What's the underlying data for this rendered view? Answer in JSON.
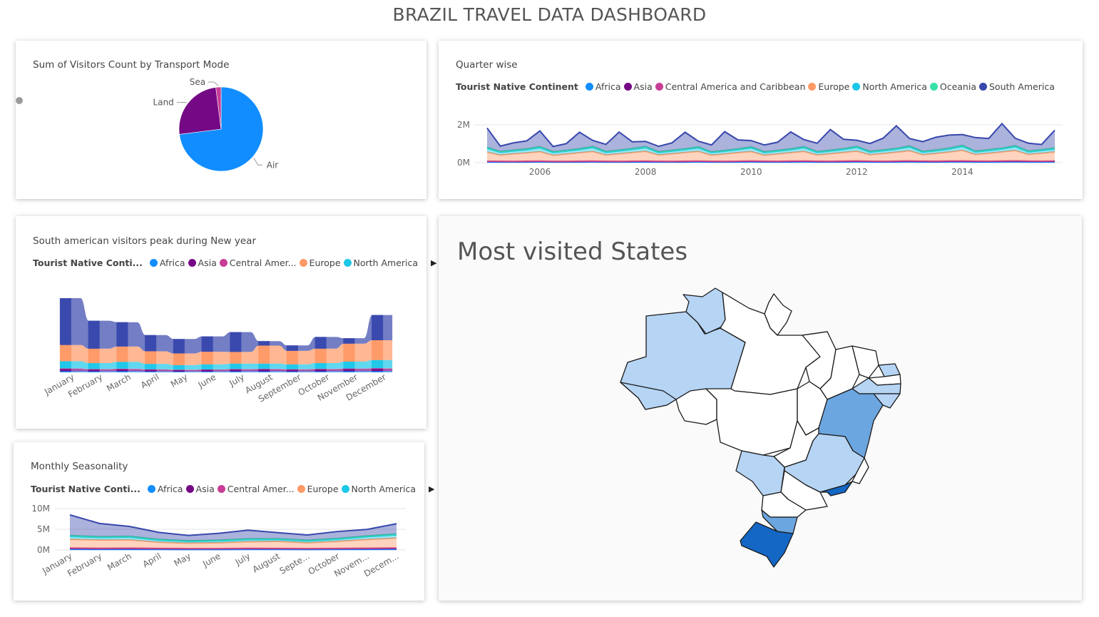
{
  "dashboard": {
    "title": "BRAZIL TRAVEL DATA DASHBOARD"
  },
  "colors": {
    "africa": "#118DFF",
    "asia": "#750985",
    "central_america": "#C83D95",
    "europe": "#FF9966",
    "north_america": "#1DC7E8",
    "oceania": "#37E0A8",
    "south_america": "#3747AC",
    "map_high": "#1467C4",
    "map_mid": "#6CA6E0",
    "map_low": "#B6D4F4"
  },
  "pie_card": {
    "title": "Sum of Visitors Count by Transport Mode",
    "chart_data": {
      "type": "pie",
      "title": "Sum of Visitors Count by Transport Mode",
      "categories": [
        "Air",
        "Land",
        "Sea"
      ],
      "values": [
        73,
        25,
        2
      ]
    }
  },
  "quarter_card": {
    "title": "Quarter wise",
    "legend_title": "Tourist Native Continent",
    "legend": [
      "Africa",
      "Asia",
      "Central America and Caribbean",
      "Europe",
      "North America",
      "Oceania",
      "South America"
    ],
    "chart_data": {
      "type": "area",
      "ytick_labels": [
        "0M",
        "2M"
      ],
      "xtick_labels": [
        "2006",
        "2008",
        "2010",
        "2012",
        "2014"
      ],
      "x_start": 2005.0,
      "x_step": 0.25,
      "ylim": [
        0,
        2000000
      ],
      "stack_order": [
        "Africa",
        "Asia",
        "Central America and Caribbean",
        "Europe",
        "North America",
        "Oceania",
        "South America"
      ],
      "series": [
        {
          "name": "Africa",
          "values": [
            30000,
            28000,
            26000,
            30000,
            32000,
            27000,
            26000,
            29000,
            31000,
            28000,
            26000,
            29000,
            30000,
            28000,
            26000,
            29000,
            31000,
            28000,
            27000,
            30000,
            32000,
            29000,
            27000,
            30000,
            31000,
            28000,
            27000,
            30000,
            32000,
            29000,
            27000,
            30000,
            33000,
            29000,
            28000,
            31000,
            32000,
            29000,
            28000,
            31000,
            33000,
            30000,
            28000,
            31000
          ]
        },
        {
          "name": "Asia",
          "values": [
            40000,
            36000,
            34000,
            38000,
            42000,
            36000,
            34000,
            38000,
            42000,
            37000,
            35000,
            39000,
            42000,
            37000,
            35000,
            39000,
            43000,
            38000,
            36000,
            40000,
            44000,
            39000,
            37000,
            41000,
            45000,
            40000,
            38000,
            42000,
            46000,
            41000,
            39000,
            43000,
            47000,
            42000,
            40000,
            44000,
            48000,
            43000,
            41000,
            45000,
            50000,
            44000,
            42000,
            46000
          ]
        },
        {
          "name": "Central America and Caribbean",
          "values": [
            12000,
            10000,
            9000,
            11000,
            12000,
            10000,
            9000,
            11000,
            12000,
            10000,
            9000,
            11000,
            12000,
            10000,
            9000,
            11000,
            13000,
            11000,
            10000,
            12000,
            13000,
            11000,
            10000,
            12000,
            13000,
            11000,
            10000,
            12000,
            14000,
            12000,
            11000,
            13000,
            14000,
            12000,
            11000,
            13000,
            15000,
            12000,
            11000,
            14000,
            15000,
            13000,
            12000,
            14000
          ]
        },
        {
          "name": "Europe",
          "values": [
            480000,
            330000,
            400000,
            440000,
            500000,
            320000,
            390000,
            450000,
            510000,
            330000,
            400000,
            460000,
            520000,
            330000,
            400000,
            460000,
            510000,
            320000,
            390000,
            450000,
            500000,
            320000,
            390000,
            450000,
            510000,
            330000,
            400000,
            460000,
            520000,
            340000,
            410000,
            470000,
            540000,
            340000,
            410000,
            480000,
            560000,
            350000,
            420000,
            480000,
            550000,
            350000,
            420000,
            480000
          ]
        },
        {
          "name": "North America",
          "values": [
            190000,
            140000,
            150000,
            160000,
            200000,
            140000,
            150000,
            160000,
            200000,
            140000,
            150000,
            160000,
            190000,
            130000,
            140000,
            150000,
            180000,
            130000,
            140000,
            150000,
            190000,
            130000,
            140000,
            150000,
            190000,
            130000,
            140000,
            150000,
            190000,
            130000,
            140000,
            150000,
            190000,
            130000,
            140000,
            150000,
            200000,
            130000,
            140000,
            150000,
            190000,
            130000,
            140000,
            150000
          ]
        },
        {
          "name": "Oceania",
          "values": [
            50000,
            40000,
            38000,
            42000,
            52000,
            40000,
            38000,
            42000,
            52000,
            40000,
            38000,
            42000,
            50000,
            38000,
            36000,
            40000,
            48000,
            38000,
            36000,
            40000,
            48000,
            38000,
            36000,
            40000,
            48000,
            38000,
            36000,
            40000,
            50000,
            38000,
            36000,
            40000,
            50000,
            38000,
            36000,
            40000,
            52000,
            40000,
            38000,
            42000,
            52000,
            40000,
            38000,
            42000
          ]
        },
        {
          "name": "South America",
          "values": [
            1030000,
            290000,
            390000,
            430000,
            840000,
            280000,
            360000,
            880000,
            330000,
            380000,
            960000,
            360000,
            280000,
            290000,
            400000,
            880000,
            310000,
            370000,
            1000000,
            480000,
            340000,
            370000,
            440000,
            900000,
            380000,
            450000,
            1100000,
            500000,
            330000,
            420000,
            630000,
            1200000,
            400000,
            520000,
            680000,
            700000,
            580000,
            720000,
            600000,
            1300000,
            400000,
            420000,
            280000,
            950000
          ]
        }
      ]
    }
  },
  "ribbon_card": {
    "title": "South american visitors peak during New year",
    "legend_title": "Tourist Native Conti...",
    "legend": [
      "Africa",
      "Asia",
      "Central Amer...",
      "Europe",
      "North America"
    ],
    "chart_data": {
      "type": "bar",
      "categories": [
        "January",
        "February",
        "March",
        "April",
        "May",
        "June",
        "July",
        "August",
        "September",
        "October",
        "November",
        "December"
      ],
      "stack_order": [
        "Africa",
        "Asia",
        "Central America and Caribbean",
        "North America",
        "Europe",
        "South America"
      ],
      "series": [
        {
          "name": "Africa",
          "values": [
            60000,
            55000,
            60000,
            50000,
            45000,
            50000,
            55000,
            55000,
            50000,
            55000,
            60000,
            65000
          ]
        },
        {
          "name": "Asia",
          "values": [
            120000,
            100000,
            110000,
            90000,
            80000,
            90000,
            100000,
            110000,
            100000,
            110000,
            120000,
            130000
          ]
        },
        {
          "name": "Central America and Caribbean",
          "values": [
            40000,
            30000,
            35000,
            30000,
            25000,
            25000,
            30000,
            30000,
            25000,
            30000,
            35000,
            40000
          ]
        },
        {
          "name": "North America",
          "values": [
            400000,
            330000,
            380000,
            300000,
            250000,
            280000,
            300000,
            290000,
            270000,
            320000,
            380000,
            450000
          ]
        },
        {
          "name": "Europe",
          "values": [
            900000,
            800000,
            850000,
            700000,
            650000,
            700000,
            650000,
            1000000,
            750000,
            800000,
            1000000,
            1100000
          ]
        },
        {
          "name": "South America",
          "values": [
            2600000,
            1550000,
            1350000,
            900000,
            800000,
            850000,
            1100000,
            250000,
            300000,
            650000,
            300000,
            1400000
          ]
        }
      ]
    }
  },
  "monthly_card": {
    "title": "Monthly Seasonality",
    "legend_title": "Tourist Native Conti...",
    "legend": [
      "Africa",
      "Asia",
      "Central Amer...",
      "Europe",
      "North America"
    ],
    "chart_data": {
      "type": "area",
      "ytick_labels": [
        "0M",
        "5M",
        "10M"
      ],
      "xtick_labels": [
        "January",
        "February",
        "March",
        "April",
        "May",
        "June",
        "July",
        "August",
        "Septe...",
        "October",
        "Novem...",
        "Decem..."
      ],
      "ylim": [
        0,
        10000000
      ],
      "stack_order": [
        "Africa",
        "Asia",
        "Central America and Caribbean",
        "Europe",
        "North America",
        "Oceania",
        "South America"
      ],
      "series": [
        {
          "name": "Africa",
          "values": [
            150000,
            130000,
            140000,
            120000,
            110000,
            110000,
            130000,
            120000,
            110000,
            120000,
            130000,
            150000
          ]
        },
        {
          "name": "Asia",
          "values": [
            250000,
            220000,
            230000,
            200000,
            190000,
            190000,
            210000,
            200000,
            190000,
            210000,
            230000,
            260000
          ]
        },
        {
          "name": "Central America and Caribbean",
          "values": [
            80000,
            70000,
            75000,
            60000,
            55000,
            55000,
            65000,
            60000,
            55000,
            60000,
            70000,
            80000
          ]
        },
        {
          "name": "Europe",
          "values": [
            2100000,
            2000000,
            2000000,
            1500000,
            1300000,
            1400000,
            1600000,
            1700000,
            1400000,
            1700000,
            2100000,
            2400000
          ]
        },
        {
          "name": "North America",
          "values": [
            700000,
            600000,
            650000,
            500000,
            400000,
            450000,
            500000,
            450000,
            420000,
            500000,
            650000,
            750000
          ]
        },
        {
          "name": "Oceania",
          "values": [
            200000,
            180000,
            190000,
            160000,
            150000,
            150000,
            170000,
            160000,
            150000,
            160000,
            180000,
            200000
          ]
        },
        {
          "name": "South America",
          "values": [
            5000000,
            3200000,
            2400000,
            1700000,
            1300000,
            1650000,
            2100000,
            1500000,
            1300000,
            1700000,
            1600000,
            2500000
          ]
        }
      ]
    }
  },
  "map_card": {
    "title": "Most visited States"
  }
}
